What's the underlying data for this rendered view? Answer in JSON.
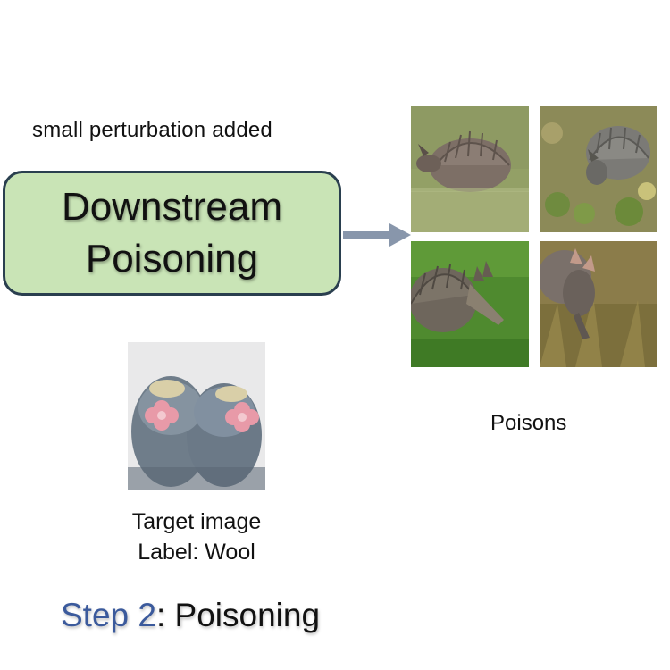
{
  "perturbation_label": "small perturbation added",
  "process": {
    "label": "Downstream Poisoning",
    "fill_color": "#c9e4b6",
    "border_color": "#2a3f4f"
  },
  "arrow": {
    "color": "#8896ab",
    "icon": "arrow-right-icon"
  },
  "poisons": {
    "label": "Poisons",
    "images": [
      {
        "subject": "armadillo"
      },
      {
        "subject": "armadillo"
      },
      {
        "subject": "armadillo"
      },
      {
        "subject": "armadillo"
      }
    ]
  },
  "target": {
    "subject": "crocheted baby booties",
    "caption_line1": "Target image",
    "caption_line2": "Label: Wool"
  },
  "step": {
    "prefix": "Step 2",
    "rest": ": Poisoning",
    "prefix_color": "#3b5a9c"
  }
}
